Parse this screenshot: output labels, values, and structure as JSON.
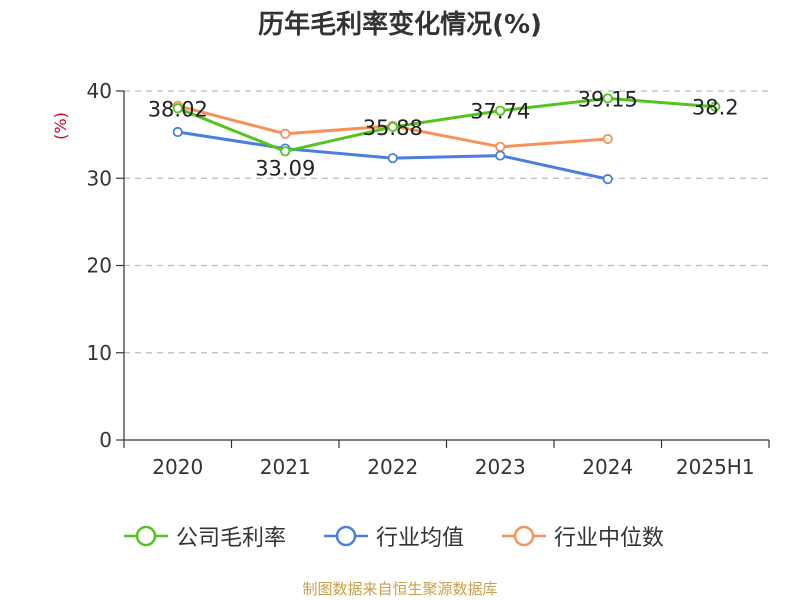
{
  "title": "历年毛利率变化情况(%)",
  "source_label": "制图数据来自恒生聚源数据库",
  "colors": {
    "title": "#333333",
    "axis_unit": "#d0021b",
    "source": "#c8a04a",
    "grid": "#bbbbbb",
    "axis": "#333333"
  },
  "chart_data": {
    "type": "line",
    "title": "历年毛利率变化情况(%)",
    "ylabel": "(%)",
    "xlabel": "",
    "categories": [
      "2020",
      "2021",
      "2022",
      "2023",
      "2024",
      "2025H1"
    ],
    "ylim": [
      0,
      40
    ],
    "yticks": [
      0,
      10,
      20,
      30,
      40
    ],
    "grid": true,
    "legend_position": "bottom",
    "series": [
      {
        "name": "公司毛利率",
        "color": "#52c41a",
        "values": [
          38.02,
          33.09,
          35.88,
          37.74,
          39.15,
          38.2
        ],
        "labels": [
          "38.02",
          "33.09",
          "35.88",
          "37.74",
          "39.15",
          "38.2"
        ]
      },
      {
        "name": "行业均值",
        "color": "#4a7fdb",
        "values": [
          35.3,
          33.4,
          32.3,
          32.6,
          29.9,
          null
        ],
        "labels": []
      },
      {
        "name": "行业中位数",
        "color": "#f5925a",
        "values": [
          38.3,
          35.1,
          36.0,
          33.6,
          34.5,
          null
        ],
        "labels": []
      }
    ]
  }
}
